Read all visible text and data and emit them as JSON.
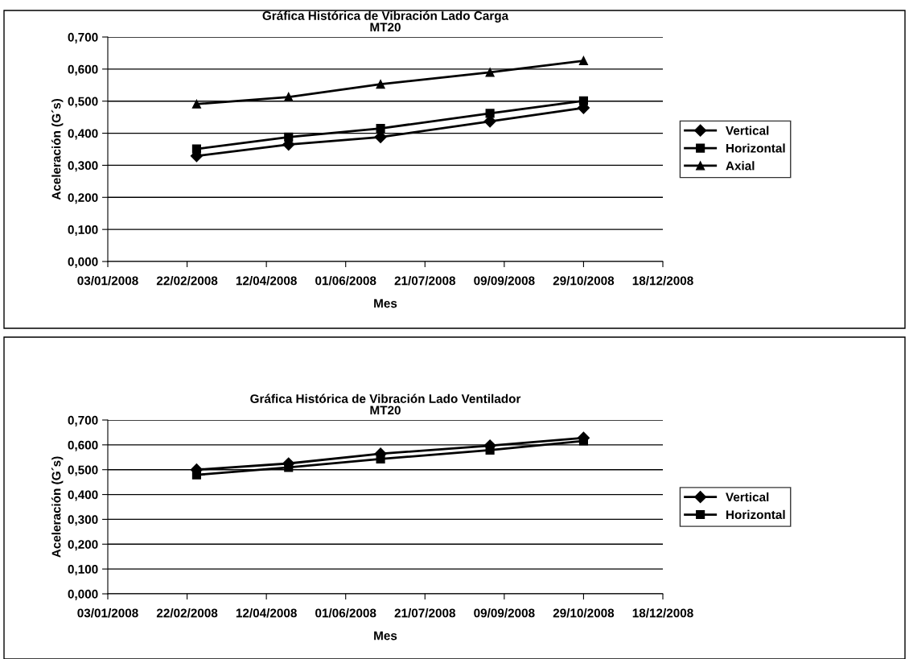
{
  "chart_data": [
    {
      "type": "line",
      "title": "Gráfica Histórica de Vibración Lado Carga\nMT20",
      "xlabel": "Mes",
      "ylabel": "Aceleración (G´s)",
      "x": [
        "2008-02-28",
        "2008-04-26",
        "2008-06-23",
        "2008-08-31",
        "2008-10-29"
      ],
      "series": [
        {
          "name": "Vertical",
          "color": "#000000",
          "marker": "diamond",
          "values": [
            0.329,
            0.365,
            0.388,
            0.437,
            0.479
          ]
        },
        {
          "name": "Horizontal",
          "color": "#000000",
          "marker": "square",
          "values": [
            0.351,
            0.388,
            0.415,
            0.462,
            0.501
          ]
        },
        {
          "name": "Axial",
          "color": "#000000",
          "marker": "triangle",
          "values": [
            0.491,
            0.513,
            0.553,
            0.59,
            0.626
          ]
        }
      ],
      "xlim": [
        "2008-01-03",
        "2008-12-18"
      ],
      "xticks": [
        {
          "value": "2008-01-03",
          "label": "03/01/2008"
        },
        {
          "value": "2008-02-22",
          "label": "22/02/2008"
        },
        {
          "value": "2008-04-12",
          "label": "12/04/2008"
        },
        {
          "value": "2008-06-01",
          "label": "01/06/2008"
        },
        {
          "value": "2008-07-21",
          "label": "21/07/2008"
        },
        {
          "value": "2008-09-09",
          "label": "09/09/2008"
        },
        {
          "value": "2008-10-29",
          "label": "29/10/2008"
        },
        {
          "value": "2008-12-18",
          "label": "18/12/2008"
        }
      ],
      "ylim": [
        0,
        0.7
      ],
      "yticks": [
        {
          "value": 0,
          "label": "0,000"
        },
        {
          "value": 0.1,
          "label": "0,100"
        },
        {
          "value": 0.2,
          "label": "0,200"
        },
        {
          "value": 0.3,
          "label": "0,300"
        },
        {
          "value": 0.4,
          "label": "0,400"
        },
        {
          "value": 0.5,
          "label": "0,500"
        },
        {
          "value": 0.6,
          "label": "0,600"
        },
        {
          "value": 0.7,
          "label": "0,700"
        }
      ],
      "grid": "y",
      "legend": "right",
      "line_style": "solid"
    },
    {
      "type": "line",
      "title": "Gráfica Histórica de Vibración Lado Ventilador\nMT20",
      "xlabel": "Mes",
      "ylabel": "Aceleración (G´s)",
      "x": [
        "2008-02-28",
        "2008-04-26",
        "2008-06-23",
        "2008-08-31",
        "2008-10-29"
      ],
      "series": [
        {
          "name": "Vertical",
          "color": "#000000",
          "marker": "diamond",
          "values": [
            0.5,
            0.525,
            0.564,
            0.597,
            0.628
          ]
        },
        {
          "name": "Horizontal",
          "color": "#000000",
          "marker": "square",
          "values": [
            0.479,
            0.509,
            0.543,
            0.579,
            0.616
          ]
        }
      ],
      "xlim": [
        "2008-01-03",
        "2008-12-18"
      ],
      "xticks": [
        {
          "value": "2008-01-03",
          "label": "03/01/2008"
        },
        {
          "value": "2008-02-22",
          "label": "22/02/2008"
        },
        {
          "value": "2008-04-12",
          "label": "12/04/2008"
        },
        {
          "value": "2008-06-01",
          "label": "01/06/2008"
        },
        {
          "value": "2008-07-21",
          "label": "21/07/2008"
        },
        {
          "value": "2008-09-09",
          "label": "09/09/2008"
        },
        {
          "value": "2008-10-29",
          "label": "29/10/2008"
        },
        {
          "value": "2008-12-18",
          "label": "18/12/2008"
        }
      ],
      "ylim": [
        0,
        0.7
      ],
      "yticks": [
        {
          "value": 0,
          "label": "0,000"
        },
        {
          "value": 0.1,
          "label": "0,100"
        },
        {
          "value": 0.2,
          "label": "0,200"
        },
        {
          "value": 0.3,
          "label": "0,300"
        },
        {
          "value": 0.4,
          "label": "0,400"
        },
        {
          "value": 0.5,
          "label": "0,500"
        },
        {
          "value": 0.6,
          "label": "0,600"
        },
        {
          "value": 0.7,
          "label": "0,700"
        }
      ],
      "grid": "y",
      "legend": "right",
      "line_style": "solid"
    }
  ]
}
